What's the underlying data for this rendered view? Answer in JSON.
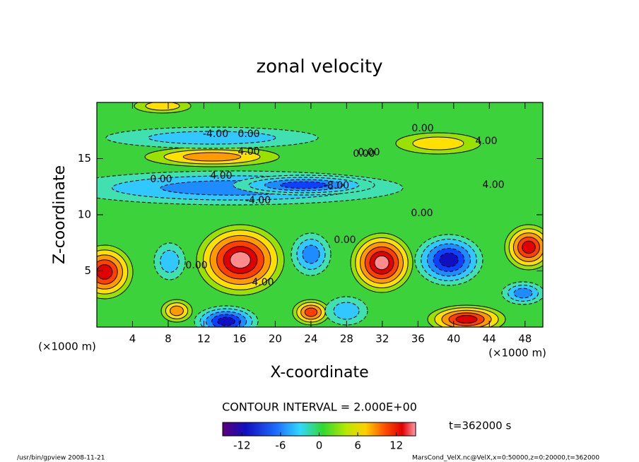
{
  "chart_data": {
    "type": "contour",
    "title": "zonal velocity",
    "xlabel": "X-coordinate",
    "ylabel": "Z-coordinate",
    "xunit": "(×1000 m)",
    "yunit": "(×1000 m)",
    "xlim": [
      0,
      50
    ],
    "ylim": [
      0,
      20
    ],
    "xticks": [
      4,
      8,
      12,
      16,
      20,
      24,
      28,
      32,
      36,
      40,
      44,
      48
    ],
    "yticks": [
      5,
      10,
      15
    ],
    "contour_interval": "CONTOUR INTERVAL = 2.000E+00",
    "time": "t=362000 s",
    "clim": [
      -15,
      15
    ],
    "cticks": [
      -12,
      -6,
      0,
      6,
      12
    ],
    "contour_labels": [
      "-4.00",
      "0.00",
      "0.00",
      "4.00",
      "0.00",
      "4.00",
      "0.00",
      "-8.00",
      "4.00",
      "-4.00",
      "0.00",
      "0.00",
      "0.00",
      "4.00",
      "0.00",
      "4.00"
    ],
    "footer_left": "/usr/bin/gpview  2008-11-21",
    "footer_right": "MarsCond_VelX.nc@VelX,x=0:50000,z=0:20000,t=362000"
  }
}
